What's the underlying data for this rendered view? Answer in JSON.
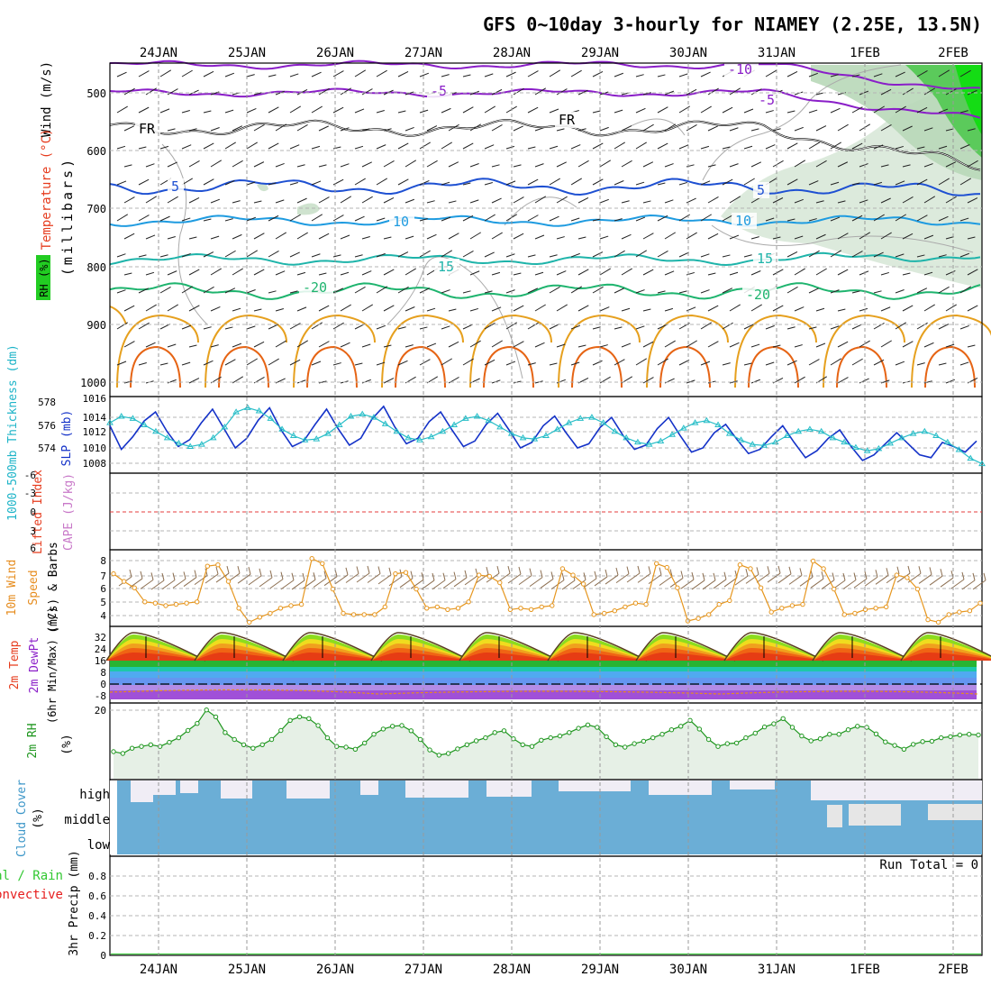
{
  "title": "GFS 0~10day 3-hourly for NIAMEY (2.25E, 13.5N)",
  "dates": [
    "24JAN",
    "25JAN",
    "26JAN",
    "27JAN",
    "28JAN",
    "29JAN",
    "30JAN",
    "31JAN",
    "1FEB",
    "2FEB"
  ],
  "colors": {
    "grid": "#b4b4b4",
    "purple": "#8a1ec8",
    "blue": "#1e50d2",
    "lightblue": "#1e9be0",
    "teal": "#1eb4aa",
    "green": "#1eb46e",
    "orange": "#e6a01e",
    "darkorange": "#e66414",
    "slp": "#1432c8",
    "thick": "#28bec8",
    "wind10": "#e6961e",
    "rh2m": "#1e961e",
    "cloud": "#6baed6",
    "precip_label_green": "#32c832",
    "precip_label_red": "#e61e1e"
  },
  "panels": {
    "upper": {
      "axis_label": "(millibars)",
      "legend": {
        "wind": "Wind (m/s)",
        "temperature": "Temperature (°C)",
        "rh": "RH (%)"
      },
      "yticks": [
        "500",
        "600",
        "700",
        "800",
        "900",
        "1000"
      ],
      "contour_labels": [
        "-10",
        "-5",
        "-5",
        "-5",
        "FR",
        "FR",
        "5",
        "5",
        "5",
        "10",
        "10",
        "15",
        "15",
        "-20",
        "-20"
      ]
    },
    "slp": {
      "axis_left": "1000-500mb Thickness (dm)",
      "axis_right": "SLP (mb)",
      "left_ticks": [
        "578",
        "576",
        "574"
      ],
      "right_ticks": [
        "1016",
        "1014",
        "1012",
        "1010",
        "1008"
      ]
    },
    "cape": {
      "axis_left": "Lifted Index",
      "axis_right": "CAPE (J/kg)",
      "ticks": [
        "-6",
        "-3",
        "0",
        "3",
        "6"
      ]
    },
    "wind10": {
      "axis_left": "10m Wind",
      "axis_mid": "Speed",
      "axis_right": "(m/s) & Barbs",
      "ticks": [
        "8",
        "7",
        "6",
        "5",
        "4"
      ]
    },
    "temp2m": {
      "line1": "2m Temp",
      "line2": "2m DewPt",
      "line3": "(6hr Min/Max) (°C)",
      "ticks": [
        "32",
        "24",
        "16",
        "8",
        "0",
        "-8"
      ]
    },
    "rh2m": {
      "axis_left": "2m RH",
      "axis_right": "(%)",
      "ticks": [
        "20"
      ]
    },
    "cloud": {
      "axis_left": "Cloud Cover",
      "axis_right": "(%)",
      "levels": [
        "high",
        "middle",
        "low"
      ]
    },
    "precip": {
      "label1": "Total / Rain",
      "label2": "Convective",
      "axis": "3hr Precip (mm)",
      "ticks": [
        "0.8",
        "0.6",
        "0.4",
        "0.2",
        "0"
      ],
      "run_total": "Run Total = 0"
    }
  },
  "chart_data": [
    {
      "type": "line",
      "title": "1000-500mb Thickness (dm) & SLP (mb)",
      "x_unit": "3-hourly steps from 23JAN 18Z",
      "series": [
        {
          "name": "SLP (mb)",
          "ylim": [
            1007,
            1016.5
          ],
          "values": [
            1012.8,
            1009.4,
            1011.2,
            1013.5,
            1014.8,
            1012.0,
            1009.8,
            1010.8,
            1013.2,
            1015.2,
            1012.4,
            1009.6,
            1011.0,
            1013.6,
            1015.4,
            1012.2,
            1009.8,
            1010.6,
            1013.0,
            1015.2,
            1012.4,
            1010.0,
            1011.0,
            1013.8,
            1015.6,
            1012.6,
            1010.2,
            1011.0,
            1013.4,
            1014.8,
            1012.2,
            1009.8,
            1010.6,
            1013.0,
            1014.6,
            1012.2,
            1009.6,
            1010.4,
            1012.8,
            1014.2,
            1011.8,
            1009.6,
            1010.2,
            1012.6,
            1014.0,
            1011.4,
            1009.4,
            1010.0,
            1012.4,
            1014.0,
            1011.4,
            1009.0,
            1009.6,
            1011.8,
            1013.0,
            1010.8,
            1008.8,
            1009.4,
            1011.2,
            1012.8,
            1010.4,
            1008.2,
            1009.2,
            1011.0,
            1012.2,
            1009.8,
            1007.8,
            1008.6,
            1010.2,
            1011.8,
            1010.2,
            1008.6,
            1008.2,
            1010.4,
            1009.8,
            1009.0,
            1010.6
          ]
        },
        {
          "name": "1000-500mb Thickness (dm)",
          "ylim": [
            572.4,
            578.5
          ],
          "values": [
            576.4,
            577.0,
            576.8,
            576.2,
            575.6,
            575.0,
            574.5,
            574.2,
            574.4,
            575.0,
            576.0,
            577.4,
            577.8,
            577.5,
            576.8,
            575.8,
            575.2,
            574.8,
            574.9,
            575.4,
            576.2,
            577.0,
            577.2,
            576.9,
            576.3,
            575.6,
            575.0,
            574.8,
            575.1,
            575.6,
            576.2,
            576.8,
            577.0,
            576.6,
            576.0,
            575.4,
            575.0,
            574.9,
            575.2,
            575.8,
            576.4,
            576.8,
            576.9,
            576.4,
            575.6,
            575.0,
            574.6,
            574.4,
            574.7,
            575.3,
            575.9,
            576.4,
            576.6,
            576.2,
            575.4,
            574.8,
            574.4,
            574.3,
            574.6,
            575.2,
            575.6,
            575.8,
            575.6,
            575.0,
            574.6,
            574.1,
            573.8,
            574.0,
            574.5,
            575.0,
            575.4,
            575.6,
            575.2,
            574.6,
            573.9,
            573.1,
            572.6
          ]
        }
      ]
    },
    {
      "type": "line",
      "title": "10m Wind Speed (m/s)",
      "ylim": [
        3.5,
        8.8
      ],
      "values": [
        7.2,
        6.6,
        6.1,
        5.0,
        4.9,
        4.7,
        4.8,
        4.9,
        5.0,
        7.8,
        7.9,
        6.6,
        4.5,
        3.4,
        3.8,
        4.1,
        4.5,
        4.7,
        4.8,
        8.4,
        8.0,
        6.0,
        4.1,
        4.0,
        4.0,
        4.0,
        4.6,
        7.2,
        7.3,
        6.0,
        4.5,
        4.6,
        4.4,
        4.5,
        5.0,
        7.1,
        7.0,
        6.5,
        4.4,
        4.5,
        4.4,
        4.6,
        4.7,
        7.6,
        7.1,
        6.4,
        4.0,
        4.1,
        4.3,
        4.6,
        4.9,
        4.8,
        8.0,
        7.7,
        6.1,
        3.5,
        3.7,
        4.0,
        4.8,
        5.1,
        7.9,
        7.6,
        6.1,
        4.2,
        4.5,
        4.7,
        4.8,
        8.2,
        7.6,
        6.0,
        4.0,
        4.1,
        4.4,
        4.5,
        4.6,
        7.1,
        6.9,
        6.0,
        3.6,
        3.4,
        4.0,
        4.2,
        4.3,
        4.9
      ]
    },
    {
      "type": "area",
      "title": "2m RH (%)",
      "ylim": [
        0,
        22
      ],
      "values": [
        7.5,
        7.0,
        8.5,
        9.0,
        9.5,
        9.0,
        10.2,
        11.5,
        13.6,
        15.6,
        19.5,
        17.5,
        13.0,
        11.0,
        9.5,
        8.5,
        9.5,
        11.0,
        13.6,
        16.5,
        17.5,
        17.0,
        15.0,
        11.5,
        9.0,
        8.8,
        8.2,
        10.0,
        12.5,
        14.0,
        14.8,
        15.0,
        13.5,
        11.0,
        8.0,
        6.5,
        7.0,
        8.3,
        9.5,
        10.6,
        11.5,
        13.0,
        13.5,
        11.2,
        9.5,
        9.0,
        10.8,
        11.5,
        12.0,
        13.0,
        14.2,
        15.2,
        14.5,
        11.8,
        9.5,
        8.8,
        9.8,
        10.5,
        11.5,
        12.5,
        13.8,
        14.8,
        16.5,
        14.0,
        11.0,
        9.0,
        9.8,
        10.0,
        11.5,
        12.8,
        14.6,
        15.5,
        17.0,
        14.5,
        12.0,
        10.6,
        11.2,
        12.5,
        12.5,
        13.8,
        14.8,
        14.5,
        12.6,
        10.3,
        9.3,
        8.2,
        9.6,
        10.4,
        10.5,
        11.5,
        11.8,
        12.3,
        12.5,
        12.3
      ]
    },
    {
      "type": "area",
      "title": "3hr Precip (mm)",
      "ylim": [
        0,
        1
      ],
      "values": [
        0,
        0,
        0,
        0,
        0,
        0,
        0,
        0,
        0,
        0
      ],
      "run_total": 0
    }
  ]
}
